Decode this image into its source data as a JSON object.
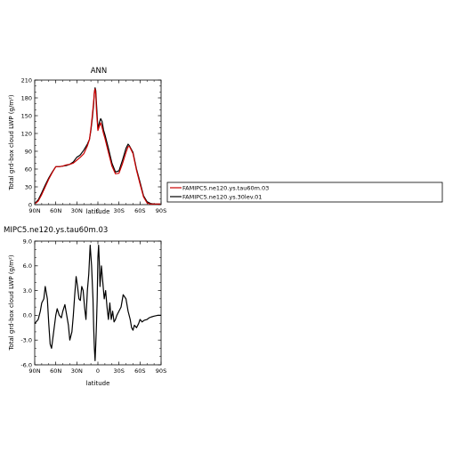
{
  "chart_data": [
    {
      "type": "line",
      "title": "ANN",
      "xlabel": "latitude",
      "ylabel": "Total grd-box cloud LWP (g/m²)",
      "xlim": [
        90,
        -90
      ],
      "ylim": [
        0,
        210
      ],
      "xticks": [
        90,
        60,
        30,
        0,
        -30,
        -60,
        -90
      ],
      "xtick_labels": [
        "90N",
        "60N",
        "30N",
        "0",
        "30S",
        "60S",
        "90S"
      ],
      "yticks": [
        0,
        30,
        60,
        90,
        120,
        150,
        180,
        210
      ],
      "ytick_labels": [
        "0",
        "30",
        "60",
        "90",
        "120",
        "150",
        "180",
        "210"
      ],
      "legend": "right",
      "series": [
        {
          "name": "FAMIPC5.ne120.ys.tau60m.03",
          "color": "#cc0000",
          "x": [
            89,
            85,
            80,
            75,
            70,
            65,
            60,
            55,
            50,
            45,
            40,
            35,
            30,
            27,
            25,
            20,
            15,
            12,
            10,
            8,
            6,
            5,
            4,
            3,
            2,
            0,
            -2,
            -4,
            -6,
            -8,
            -10,
            -15,
            -20,
            -25,
            -30,
            -35,
            -40,
            -43,
            -45,
            -50,
            -55,
            -60,
            -65,
            -70,
            -75,
            -80,
            -85,
            -89
          ],
          "values": [
            2,
            6,
            17,
            30,
            43,
            54,
            64,
            64,
            65,
            67,
            68,
            70,
            75,
            78,
            80,
            86,
            99,
            110,
            128,
            150,
            175,
            190,
            195,
            185,
            158,
            125,
            132,
            138,
            130,
            120,
            112,
            88,
            65,
            52,
            53,
            69,
            88,
            98,
            98,
            86,
            58,
            35,
            13,
            3,
            1,
            1,
            1,
            1
          ]
        },
        {
          "name": "FAMIPC5.ne120.ys.30lev.01",
          "color": "#000000",
          "x": [
            89,
            85,
            80,
            75,
            70,
            65,
            60,
            55,
            50,
            45,
            40,
            35,
            30,
            27,
            25,
            20,
            15,
            12,
            10,
            8,
            6,
            5,
            4,
            3,
            2,
            0,
            -2,
            -4,
            -6,
            -8,
            -10,
            -15,
            -20,
            -25,
            -30,
            -35,
            -40,
            -43,
            -45,
            -50,
            -55,
            -60,
            -65,
            -70,
            -75,
            -80,
            -85,
            -89
          ],
          "values": [
            3,
            8,
            20,
            33,
            45,
            55,
            64,
            64,
            65,
            66,
            68,
            72,
            80,
            82,
            84,
            92,
            102,
            110,
            125,
            145,
            170,
            190,
            197,
            192,
            170,
            128,
            138,
            145,
            140,
            126,
            118,
            95,
            70,
            55,
            57,
            75,
            95,
            102,
            99,
            88,
            60,
            38,
            15,
            5,
            2,
            1,
            1,
            1
          ]
        }
      ]
    },
    {
      "type": "line",
      "title": "MIPC5.ne120.ys.tau60m.03",
      "xlabel": "latitude",
      "ylabel": "Total grd-box cloud LWP (g/m²)",
      "xlim": [
        90,
        -90
      ],
      "ylim": [
        -6,
        9
      ],
      "xticks": [
        90,
        60,
        30,
        0,
        -30,
        -60,
        -90
      ],
      "xtick_labels": [
        "90N",
        "60N",
        "30N",
        "0",
        "30S",
        "60S",
        "90S"
      ],
      "yticks": [
        -6,
        -3,
        0,
        3,
        6,
        9
      ],
      "ytick_labels": [
        "-6.0",
        "-3.0",
        "0.0",
        "3.0",
        "6.0",
        "9.0"
      ],
      "series": [
        {
          "name": "",
          "color": "#000000",
          "x": [
            90,
            85,
            82,
            80,
            77,
            75,
            72,
            70,
            68,
            66,
            63,
            60,
            58,
            55,
            52,
            50,
            47,
            45,
            42,
            40,
            37,
            35,
            33,
            31,
            29,
            27,
            25,
            23,
            21,
            19,
            17,
            15,
            13,
            11,
            9,
            7,
            6,
            5,
            4,
            3,
            2,
            1,
            0,
            -1,
            -2,
            -3,
            -5,
            -7,
            -9,
            -11,
            -13,
            -15,
            -17,
            -19,
            -21,
            -23,
            -25,
            -27,
            -30,
            -33,
            -36,
            -40,
            -43,
            -46,
            -48,
            -50,
            -52,
            -55,
            -58,
            -60,
            -63,
            -66,
            -70,
            -73,
            -76,
            -80,
            -85,
            -90
          ],
          "values": [
            -1.0,
            -0.5,
            0.5,
            1.5,
            2.0,
            3.5,
            2.0,
            -1.0,
            -3.5,
            -4.0,
            -2.0,
            0.0,
            0.8,
            0.0,
            -0.3,
            0.5,
            1.3,
            0.3,
            -1.2,
            -3.0,
            -2.0,
            0.0,
            2.5,
            4.7,
            3.5,
            2.0,
            1.8,
            3.5,
            3.0,
            1.0,
            -0.5,
            3.0,
            5.0,
            8.5,
            6.0,
            2.0,
            -1.5,
            -4.0,
            -5.5,
            -3.5,
            -1.0,
            2.0,
            7.0,
            8.5,
            6.5,
            3.5,
            6.0,
            4.0,
            2.0,
            3.0,
            1.0,
            -0.5,
            1.5,
            -0.5,
            0.5,
            -0.8,
            -0.5,
            0.0,
            0.5,
            1.0,
            2.5,
            2.0,
            0.5,
            -0.5,
            -1.5,
            -1.8,
            -1.2,
            -1.5,
            -1.0,
            -0.5,
            -0.8,
            -0.6,
            -0.5,
            -0.3,
            -0.2,
            -0.1,
            0.0,
            0.0
          ]
        }
      ]
    }
  ]
}
